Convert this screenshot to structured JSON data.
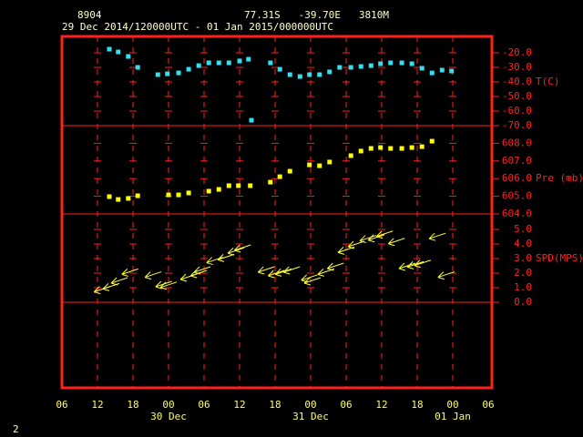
{
  "header": {
    "station": "8904",
    "location": "77.31S   -39.70E   3810M",
    "period": "29 Dec 2014/120000UTC - 01 Jan 2015/000000UTC"
  },
  "page_number": "2",
  "chart_data": [
    {
      "type": "scatter",
      "ylabel": "T(C)",
      "color": "#33e0f0",
      "x": [
        14,
        15.5,
        17.2,
        18.8,
        22.2,
        23.8,
        25.7,
        27.4,
        29.1,
        30.8,
        32.5,
        34.2,
        36,
        37.5,
        38,
        41.2,
        42.8,
        44.5,
        46.2,
        47.8,
        49.5,
        51.2,
        52.9,
        54.8,
        56.5,
        58.2,
        59.8,
        61.5,
        63.4,
        65.1,
        66.8,
        68.5,
        70.2,
        71.8
      ],
      "values": [
        -17.5,
        -19.4,
        -22.5,
        -30,
        -35,
        -34.4,
        -33.8,
        -31.3,
        -28.8,
        -26.9,
        -26.9,
        -26.9,
        -25.6,
        -24.4,
        -66.3,
        -26.9,
        -31.3,
        -35,
        -36.3,
        -35,
        -35,
        -33.1,
        -30,
        -30,
        -29.4,
        -28.8,
        -27.5,
        -26.9,
        -26.9,
        -27.5,
        -30.6,
        -33.8,
        -31.9,
        -32.5
      ],
      "ylim": [
        -70,
        -8.75
      ],
      "yticks": [
        {
          "value": -20,
          "label": "-20.0"
        },
        {
          "value": -30,
          "label": "-30.0"
        },
        {
          "value": -40,
          "label": "-40.0"
        },
        {
          "value": -50,
          "label": "-50.0"
        },
        {
          "value": -60,
          "label": "-60.0"
        },
        {
          "value": -70,
          "label": "-70.0"
        }
      ]
    },
    {
      "type": "scatter",
      "ylabel": "Pre (mb)",
      "color": "#ffff00",
      "x": [
        14,
        15.5,
        17.2,
        18.8,
        24,
        25.7,
        27.4,
        30.8,
        32.5,
        34.2,
        35.8,
        37.8,
        41.2,
        42.8,
        44.5,
        47.8,
        49.5,
        51.2,
        54.8,
        56.5,
        58.2,
        59.8,
        61.5,
        63.4,
        65.1,
        66.8,
        68.5
      ],
      "values": [
        604.98,
        604.82,
        604.88,
        605.03,
        605.08,
        605.08,
        605.19,
        605.29,
        605.39,
        605.6,
        605.6,
        605.6,
        605.8,
        606.11,
        606.42,
        606.78,
        606.73,
        606.94,
        607.3,
        607.56,
        607.71,
        607.76,
        607.71,
        607.71,
        607.76,
        607.81,
        608.12
      ],
      "ylim": [
        604,
        609
      ],
      "yticks": [
        {
          "value": 608,
          "label": "608.0"
        },
        {
          "value": 607,
          "label": "607.0"
        },
        {
          "value": 606,
          "label": "606.0"
        },
        {
          "value": 605,
          "label": "605.0"
        },
        {
          "value": 604,
          "label": "604.0"
        }
      ]
    },
    {
      "type": "wind",
      "ylabel": "SPD(MPS)",
      "color": "#ffff33",
      "x": [
        12.8,
        14.3,
        15.7,
        17.5,
        21.4,
        23.2,
        24,
        27.4,
        29.1,
        29.7,
        31.8,
        33.7,
        35.4,
        36.5,
        40.5,
        42.2,
        43.4,
        44.8,
        47.8,
        48.3,
        50.6,
        52.2,
        54,
        55.7,
        57.7,
        59.1,
        60.5,
        62.5,
        64.3,
        65.7,
        66.9,
        69.4,
        70.9
      ],
      "values": [
        0.9,
        1.1,
        1.5,
        2.1,
        1.9,
        1.25,
        1.2,
        1.75,
        2.0,
        2.25,
        2.9,
        3.1,
        3.55,
        3.75,
        2.25,
        2.0,
        2.1,
        2.25,
        1.7,
        1.5,
        2.1,
        2.5,
        3.6,
        4.0,
        4.4,
        4.45,
        4.7,
        4.2,
        2.5,
        2.6,
        2.7,
        4.55,
        1.9
      ],
      "ylim": [
        0,
        6.06
      ],
      "yticks": [
        {
          "value": 5,
          "label": "5.0"
        },
        {
          "value": 4,
          "label": "4.0"
        },
        {
          "value": 3,
          "label": "3.0"
        },
        {
          "value": 2,
          "label": "2.0"
        },
        {
          "value": 1,
          "label": "1.0"
        },
        {
          "value": 0,
          "label": "0.0"
        }
      ],
      "xlim": [
        6,
        78
      ],
      "xticks": [
        {
          "value": 6,
          "label": "06"
        },
        12,
        18,
        {
          "value": 24,
          "label": "00"
        },
        {
          "value": 30,
          "label": "06"
        },
        {
          "value": 36,
          "label": "12"
        },
        {
          "value": 42,
          "label": "18"
        },
        {
          "value": 48,
          "label": "00"
        },
        {
          "value": 54,
          "label": "06"
        },
        {
          "value": 60,
          "label": "12"
        },
        {
          "value": 66,
          "label": "18"
        },
        {
          "value": 72,
          "label": "00"
        },
        {
          "value": 78,
          "label": "06"
        }
      ],
      "date_labels": [
        {
          "value": 24,
          "label": "30 Dec"
        },
        {
          "value": 48,
          "label": "31 Dec"
        },
        {
          "value": 72,
          "label": "01 Jan"
        }
      ]
    }
  ]
}
